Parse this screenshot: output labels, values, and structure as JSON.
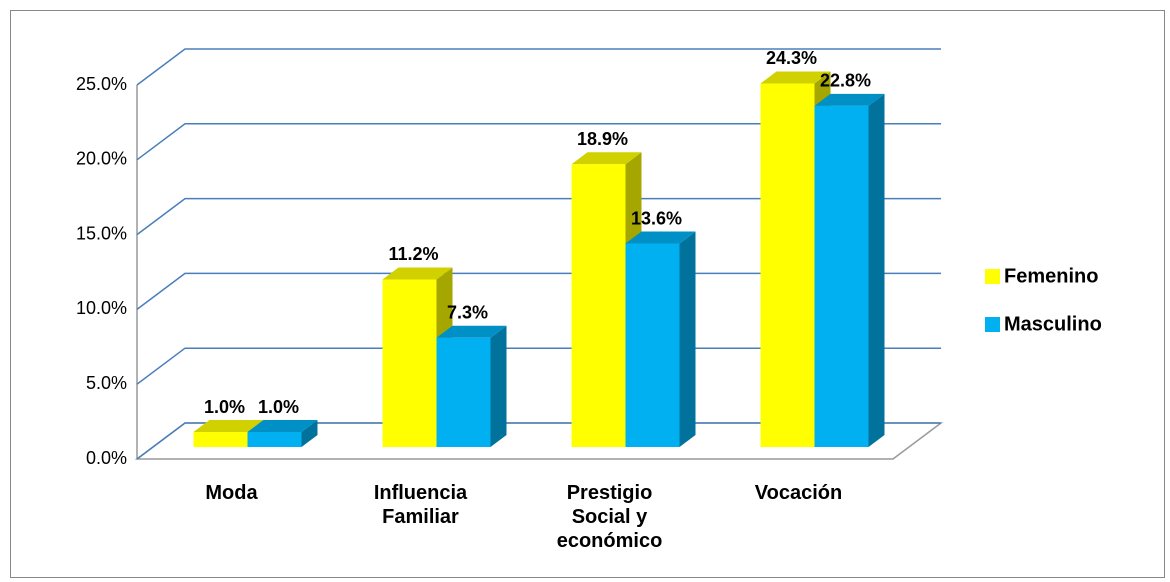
{
  "chart_data": {
    "type": "bar3d",
    "categories": [
      "Moda",
      "Influencia Familiar",
      "Prestigio Social y económico",
      "Vocación"
    ],
    "series": [
      {
        "name": "Femenino",
        "color": "#ffff00",
        "values": [
          1.0,
          11.2,
          18.9,
          24.3
        ],
        "value_labels": [
          "1.0%",
          "11.2%",
          "18.9%",
          "24.3%"
        ]
      },
      {
        "name": "Masculino",
        "color": "#00b0f0",
        "values": [
          1.0,
          7.3,
          13.6,
          22.8
        ],
        "value_labels": [
          "1.0%",
          "7.3%",
          "13.6%",
          "22.8%"
        ]
      }
    ],
    "ylim": [
      0,
      25
    ],
    "yticks": [
      {
        "value": 0,
        "label": "0.0%"
      },
      {
        "value": 5,
        "label": "5.0%"
      },
      {
        "value": 10,
        "label": "10.0%"
      },
      {
        "value": 15,
        "label": "15.0%"
      },
      {
        "value": 20,
        "label": "20.0%"
      },
      {
        "value": 25,
        "label": "25.0%"
      }
    ],
    "grid": true,
    "legend": "right"
  }
}
